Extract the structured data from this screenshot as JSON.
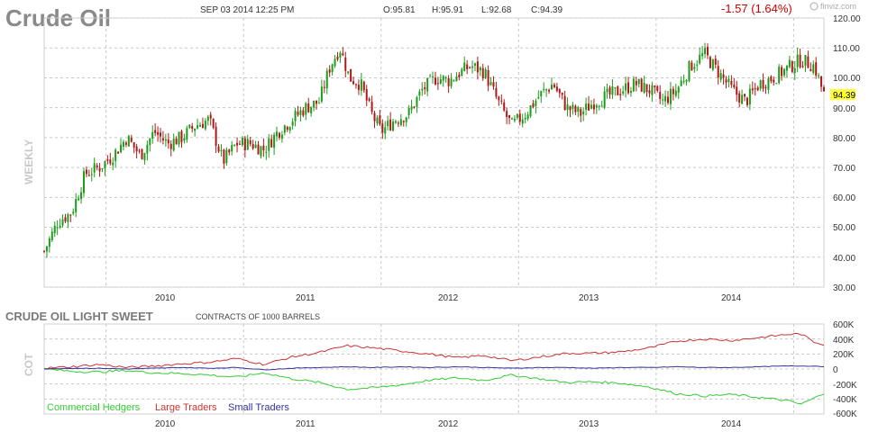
{
  "header": {
    "title": "Crude Oil",
    "datetime": "SEP 03 2014 12:25 PM",
    "open": "O:95.81",
    "high": "H:95.91",
    "low": "L:92.68",
    "close": "C:94.39",
    "change": "-1.57 (1.64%)",
    "brand": "finviz.com"
  },
  "colors": {
    "up": "#1a9e1a",
    "down": "#b01818",
    "grid": "#c8c8c8",
    "highlight": "#ffff33",
    "commercial": "#33cc33",
    "large": "#cc3333",
    "small": "#333399"
  },
  "price_chart": {
    "side_label": "WEEKLY",
    "current_price": "94.39",
    "year_labels": [
      "2010",
      "2011",
      "2012",
      "2013",
      "2014"
    ],
    "y_tick_labels": [
      "120.00",
      "110.00",
      "100.00",
      "90.00",
      "80.00",
      "70.00",
      "60.00",
      "50.00",
      "40.00",
      "30.00"
    ]
  },
  "cot_chart": {
    "side_label": "COT",
    "title": "CRUDE OIL LIGHT SWEET",
    "subtitle": "CONTRACTS OF 1000 BARRELS",
    "y_tick_labels": [
      "600K",
      "400K",
      "200K",
      "0",
      "-200K",
      "-400K",
      "-600K"
    ],
    "year_labels": [
      "2010",
      "2011",
      "2012",
      "2013",
      "2014"
    ],
    "legend": [
      "Commercial Hedgers",
      "Large Traders",
      "Small Traders"
    ]
  },
  "chart_data": [
    {
      "type": "candlestick",
      "title": "Crude Oil",
      "ylim": [
        30,
        120
      ],
      "x": [
        2009.0,
        2009.1,
        2009.2,
        2009.3,
        2009.4,
        2009.5,
        2009.6,
        2009.7,
        2009.8,
        2009.9,
        2010.0,
        2010.1,
        2010.2,
        2010.3,
        2010.4,
        2010.5,
        2010.6,
        2010.7,
        2010.8,
        2010.9,
        2011.0,
        2011.08,
        2011.15,
        2011.22,
        2011.3,
        2011.38,
        2011.45,
        2011.55,
        2011.65,
        2011.75,
        2011.85,
        2011.95,
        2012.0,
        2012.1,
        2012.2,
        2012.3,
        2012.4,
        2012.5,
        2012.6,
        2012.7,
        2012.8,
        2012.9,
        2013.0,
        2013.1,
        2013.2,
        2013.3,
        2013.4,
        2013.5,
        2013.6,
        2013.7,
        2013.8,
        2013.9,
        2014.0,
        2014.1,
        2014.2,
        2014.3,
        2014.4,
        2014.5,
        2014.6,
        2014.67
      ],
      "y": [
        42,
        52,
        55,
        68,
        70,
        74,
        80,
        74,
        82,
        78,
        80,
        84,
        86,
        72,
        78,
        78,
        76,
        82,
        86,
        90,
        92,
        104,
        110,
        100,
        98,
        88,
        82,
        86,
        88,
        96,
        100,
        99,
        101,
        104,
        102,
        92,
        84,
        88,
        94,
        98,
        90,
        88,
        92,
        94,
        96,
        98,
        96,
        92,
        96,
        104,
        108,
        102,
        96,
        92,
        98,
        100,
        103,
        106,
        104,
        94.39
      ]
    },
    {
      "type": "line",
      "title": "CRUDE OIL LIGHT SWEET",
      "ylim": [
        -600000,
        600000
      ],
      "x": [
        2009.0,
        2009.2,
        2009.4,
        2009.6,
        2009.8,
        2010.0,
        2010.2,
        2010.4,
        2010.6,
        2010.8,
        2011.0,
        2011.2,
        2011.4,
        2011.6,
        2011.8,
        2012.0,
        2012.2,
        2012.4,
        2012.6,
        2012.8,
        2013.0,
        2013.2,
        2013.4,
        2013.6,
        2013.8,
        2014.0,
        2014.2,
        2014.4,
        2014.5,
        2014.6,
        2014.67
      ],
      "series": [
        {
          "name": "Commercial Hedgers",
          "values": [
            0,
            -30000,
            -40000,
            -20000,
            -50000,
            -60000,
            -80000,
            -110000,
            -50000,
            -130000,
            -180000,
            -270000,
            -250000,
            -210000,
            -150000,
            -120000,
            -150000,
            -80000,
            -130000,
            -180000,
            -170000,
            -190000,
            -240000,
            -330000,
            -360000,
            -340000,
            -380000,
            -420000,
            -470000,
            -390000,
            -320000
          ]
        },
        {
          "name": "Large Traders",
          "values": [
            10000,
            30000,
            60000,
            20000,
            40000,
            70000,
            90000,
            140000,
            60000,
            160000,
            220000,
            310000,
            280000,
            240000,
            200000,
            150000,
            180000,
            110000,
            160000,
            210000,
            210000,
            230000,
            280000,
            370000,
            400000,
            380000,
            420000,
            460000,
            470000,
            360000,
            330000
          ]
        },
        {
          "name": "Small Traders",
          "values": [
            0,
            10000,
            10000,
            0,
            10000,
            20000,
            10000,
            20000,
            -10000,
            10000,
            20000,
            30000,
            20000,
            30000,
            20000,
            30000,
            20000,
            10000,
            20000,
            20000,
            10000,
            20000,
            20000,
            30000,
            20000,
            20000,
            30000,
            40000,
            40000,
            40000,
            30000
          ]
        }
      ]
    }
  ]
}
